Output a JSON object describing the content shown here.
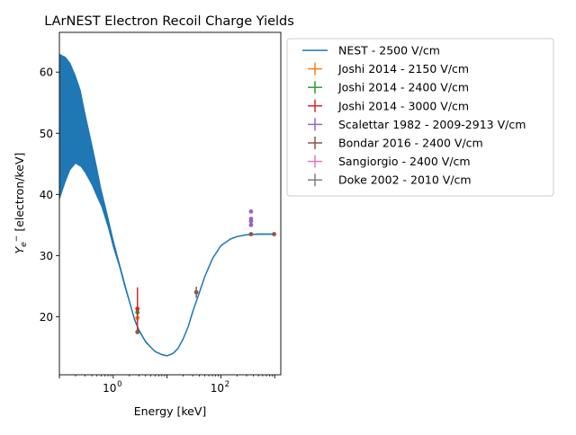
{
  "chart_data": {
    "type": "scatter",
    "title": "LArNEST Electron Recoil Charge Yields",
    "xlabel": "Energy [keV]",
    "ylabel": "Y_e- [electron/keV]",
    "ylabel_parts": {
      "main": "Y",
      "sub": "e",
      "sup": "−",
      "rest": " [electron/keV]"
    },
    "xscale": "log",
    "xlim": [
      0.1,
      1300
    ],
    "ylim": [
      10.5,
      66.5
    ],
    "xticks": [
      {
        "value": 1,
        "label": "10",
        "exp": "0"
      },
      {
        "value": 100,
        "label": "10",
        "exp": "2"
      }
    ],
    "yticks": [
      20,
      30,
      40,
      50,
      60
    ],
    "legend_position": "outside-right",
    "band": {
      "name": "NEST - 2500 V/cm",
      "color": "#1f77b4",
      "x": [
        0.1,
        0.13,
        0.16,
        0.2,
        0.25,
        0.3,
        0.4,
        0.5,
        0.6,
        0.8,
        1,
        1.3,
        1.6,
        2,
        2.5,
        3,
        4,
        5,
        6,
        8,
        10,
        13,
        16,
        20,
        25,
        30,
        40,
        50,
        70,
        100,
        150,
        200,
        300,
        500,
        700,
        1000
      ],
      "center": [
        50,
        52.5,
        53,
        52,
        50.5,
        48.5,
        45,
        42,
        39.5,
        35.5,
        32,
        28.5,
        25.5,
        22.5,
        19.5,
        17.8,
        15.9,
        15,
        14.3,
        13.8,
        13.6,
        14,
        14.8,
        16.4,
        18.5,
        20.8,
        24,
        26.5,
        29.5,
        31.6,
        32.7,
        33.1,
        33.4,
        33.5,
        33.5,
        33.5
      ],
      "upper": [
        63,
        62.5,
        61.5,
        59.5,
        57,
        53.5,
        48.5,
        44.5,
        41,
        36.5,
        32.8,
        29,
        26,
        22.8,
        19.8,
        18,
        16.1,
        15.1,
        14.4,
        13.9,
        13.7,
        14.1,
        14.9,
        16.5,
        18.6,
        20.9,
        24.1,
        26.6,
        29.6,
        31.7,
        32.8,
        33.2,
        33.5,
        33.6,
        33.6,
        33.6
      ],
      "lower": [
        39,
        42,
        44,
        45,
        44.5,
        43.5,
        41.5,
        39.5,
        38,
        34.5,
        31.2,
        28,
        25,
        22.2,
        19.2,
        17.6,
        15.7,
        14.9,
        14.2,
        13.7,
        13.5,
        13.9,
        14.7,
        16.3,
        18.4,
        20.7,
        23.9,
        26.4,
        29.4,
        31.5,
        32.6,
        33,
        33.3,
        33.4,
        33.4,
        33.4
      ]
    },
    "series": [
      {
        "name": "Joshi 2014 - 2150 V/cm",
        "color": "#ff7f0e",
        "points": [
          {
            "x": 2.82,
            "y": 19.8,
            "yerr": 0.6
          }
        ]
      },
      {
        "name": "Joshi 2014 - 2400 V/cm",
        "color": "#2ca02c",
        "points": [
          {
            "x": 2.82,
            "y": 20.7,
            "yerr": 0.6
          }
        ]
      },
      {
        "name": "Joshi 2014 - 3000 V/cm",
        "color": "#d62728",
        "points": [
          {
            "x": 2.82,
            "y": 21.3,
            "yerr": 3.5
          }
        ]
      },
      {
        "name": "Scalettar 1982 - 2009-2913 V/cm",
        "color": "#9467bd",
        "points": [
          {
            "x": 364,
            "y": 37.2
          },
          {
            "x": 364,
            "y": 36.0
          },
          {
            "x": 364,
            "y": 35.6
          },
          {
            "x": 364,
            "y": 35.0
          }
        ]
      },
      {
        "name": "Bondar 2016 - 2400 V/cm",
        "color": "#8c564b",
        "points": [
          {
            "x": 2.82,
            "y": 17.5
          },
          {
            "x": 35,
            "y": 24.0,
            "yerr": 0.9,
            "xerr": 3
          },
          {
            "x": 364,
            "y": 33.5
          },
          {
            "x": 976,
            "y": 33.5
          }
        ]
      },
      {
        "name": "Sangiorgio - 2400 V/cm",
        "color": "#e377c2",
        "points": []
      },
      {
        "name": "Doke 2002 - 2010 V/cm",
        "color": "#7f7f7f",
        "points": []
      }
    ]
  }
}
